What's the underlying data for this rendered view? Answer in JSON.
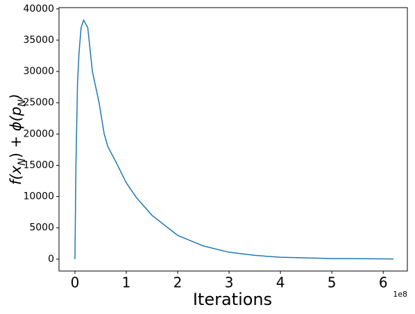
{
  "chart_data": {
    "type": "line",
    "xlabel": "Iterations",
    "x_offset_label": "1e8",
    "ylabel_parts": [
      "f(x",
      "N",
      ") + ",
      "ϕ",
      "(p",
      "N",
      ")"
    ],
    "x": [
      0,
      0.02,
      0.05,
      0.08,
      0.12,
      0.17,
      0.25,
      0.34,
      0.47,
      0.57,
      0.64,
      0.8,
      1.0,
      1.2,
      1.5,
      2.0,
      2.5,
      3.0,
      3.5,
      4.0,
      5.0,
      6.2
    ],
    "series": [
      {
        "color": "#1f77b4",
        "values": [
          0,
          15000,
          28000,
          33000,
          37000,
          38200,
          37000,
          30000,
          25000,
          20000,
          18000,
          15500,
          12200,
          9800,
          7000,
          3800,
          2100,
          1100,
          600,
          300,
          100,
          30
        ]
      }
    ],
    "xlim": [
      -0.31,
      6.47
    ],
    "ylim": [
      -1900,
      40200
    ],
    "xticks": [
      0,
      1,
      2,
      3,
      4,
      5,
      6
    ],
    "yticks": [
      0,
      5000,
      10000,
      15000,
      20000,
      25000,
      30000,
      35000,
      40000
    ]
  }
}
